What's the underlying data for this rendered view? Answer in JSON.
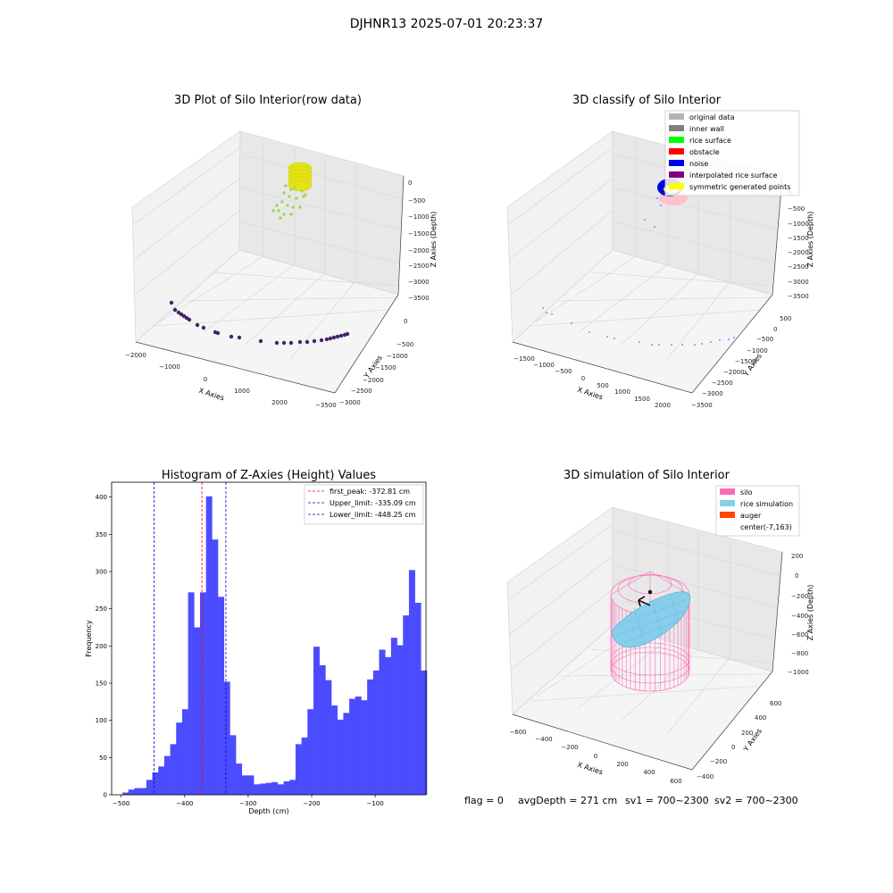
{
  "suptitle": "DJHNR13 2025-07-01 20:23:37",
  "footer": {
    "flag": "flag = 0",
    "avg": "avgDepth = 271 cm",
    "sv1": "sv1 = 700~2300",
    "sv2": "sv2 = 700~2300"
  },
  "chart_data": [
    {
      "type": "scatter",
      "title": "3D Plot of Silo Interior(row data)",
      "xlabel": "X Axies",
      "ylabel": "Y Axies",
      "zlabel": "Z Axies (Depth)",
      "x_ticks": [
        "−2000",
        "−1000",
        "0",
        "1000",
        "2000"
      ],
      "y_ticks": [
        "0",
        "−500",
        "−1000",
        "−1500",
        "−2000",
        "−2500",
        "−3000",
        "−3500"
      ],
      "z_ticks": [
        "0",
        "−500",
        "−1000",
        "−1500",
        "−2000",
        "−2500",
        "−3000",
        "−3500"
      ],
      "colors": {
        "top": "#e4e317",
        "mid": "#9fd95f",
        "bottom": "#44246b"
      }
    },
    {
      "type": "scatter",
      "title": "3D classify of Silo Interior",
      "xlabel": "X Axies",
      "ylabel": "Y Axies",
      "zlabel": "Z Axies (Depth)",
      "x_ticks": [
        "−1500",
        "−1000",
        "−500",
        "0",
        "500",
        "1000",
        "1500",
        "2000"
      ],
      "y_ticks": [
        "500",
        "0",
        "−500",
        "−1000",
        "−1500",
        "−2000",
        "−2500",
        "−3000",
        "−3500"
      ],
      "z_ticks": [
        "0",
        "−500",
        "−1000",
        "−1500",
        "−2000",
        "−2500",
        "−3000",
        "−3500"
      ],
      "legend": [
        {
          "label": "original data",
          "color": "#b3b3b3"
        },
        {
          "label": "inner wall",
          "color": "#808080"
        },
        {
          "label": "rice surface",
          "color": "#00ff00"
        },
        {
          "label": "obstacle",
          "color": "#ff0000"
        },
        {
          "label": "noise",
          "color": "#0000e6"
        },
        {
          "label": "interpolated rice surface",
          "color": "#800080"
        },
        {
          "label": "symmetric generated points",
          "color": "#ffff00"
        }
      ]
    },
    {
      "type": "bar",
      "title": "Histogram of Z-Axies (Height) Values",
      "xlabel": "Depth (cm)",
      "ylabel": "Frequency",
      "xlim": [
        -515,
        -20
      ],
      "ylim": [
        0,
        420
      ],
      "x_ticks": [
        -500,
        -400,
        -300,
        -200,
        -100
      ],
      "x_tick_labels": [
        "−500",
        "−400",
        "−300",
        "−200",
        "−100"
      ],
      "y_ticks": [
        0,
        50,
        100,
        150,
        200,
        250,
        300,
        350,
        400
      ],
      "y_tick_labels": [
        "0",
        "50",
        "100",
        "150",
        "200",
        "250",
        "300",
        "350",
        "400"
      ],
      "bin_start": -498,
      "bin_width": 9.4,
      "values": [
        3,
        7,
        9,
        9,
        20,
        30,
        38,
        52,
        68,
        97,
        115,
        272,
        225,
        272,
        401,
        343,
        266,
        152,
        80,
        42,
        26,
        26,
        14,
        15,
        16,
        17,
        14,
        18,
        20,
        68,
        77,
        115,
        199,
        174,
        154,
        120,
        101,
        110,
        129,
        132,
        127,
        155,
        167,
        195,
        185,
        211,
        201,
        241,
        302,
        258,
        167
      ],
      "bar_color": "#4c4cff",
      "lines": [
        {
          "x": -372.81,
          "color": "#ff0000",
          "label": "first_peak: -372.81 cm"
        },
        {
          "x": -335.09,
          "color": "#0000cc",
          "label": "Upper_limit: -335.09 cm"
        },
        {
          "x": -448.25,
          "color": "#0000cc",
          "label": "Lower_limit: -448.25 cm"
        }
      ]
    },
    {
      "type": "scatter",
      "title": "3D simulation of Silo Interior",
      "xlabel": "X Axies",
      "ylabel": "Y Axies",
      "zlabel": "Z Axies (Depth)",
      "x_ticks": [
        "−600",
        "−400",
        "−200",
        "0",
        "200",
        "400",
        "600"
      ],
      "y_ticks": [
        "600",
        "400",
        "200",
        "0",
        "−200",
        "−400"
      ],
      "z_ticks": [
        "200",
        "0",
        "−200",
        "−400",
        "−600",
        "−800",
        "−1000"
      ],
      "legend": [
        {
          "label": "silo",
          "color": "#ff69b4"
        },
        {
          "label": "rice simulation",
          "color": "#87ceeb"
        },
        {
          "label": "auger",
          "color": "#ff4500"
        },
        {
          "label": "center(-7,163)",
          "color": ""
        }
      ]
    }
  ]
}
